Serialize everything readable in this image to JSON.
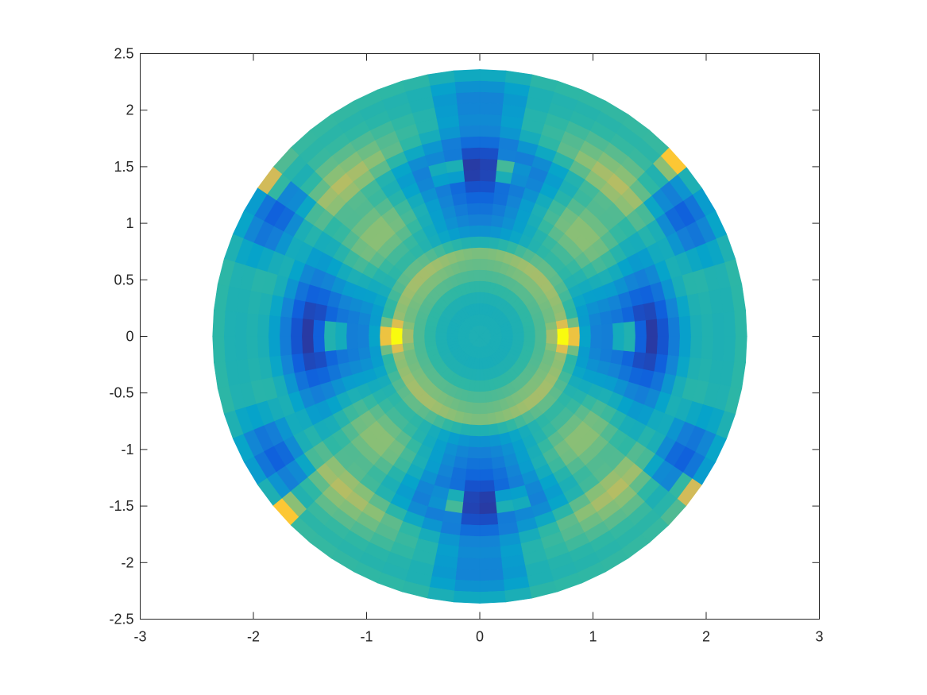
{
  "chart_data": {
    "type": "heatmap",
    "plot_kind": "polar pseudocolor surface on a disk",
    "title": "",
    "xlabel": "",
    "ylabel": "",
    "xlim": [
      -3,
      3
    ],
    "ylim": [
      -2.5,
      2.5
    ],
    "x_ticks": [
      -3,
      -2,
      -1,
      0,
      1,
      2,
      3
    ],
    "y_ticks": [
      2.5,
      2,
      1.5,
      1,
      0.5,
      0,
      -0.5,
      -1,
      -1.5,
      -2,
      -2.5
    ],
    "x_tick_labels": [
      "-3",
      "-2",
      "-1",
      "0",
      "1",
      "2",
      "3"
    ],
    "y_tick_labels": [
      "2.5",
      "2",
      "1.5",
      "1",
      "0.5",
      "0",
      "-0.5",
      "-1",
      "-1.5",
      "-2",
      "-2.5"
    ],
    "disk_radius": 2.36,
    "radial_cells": 24,
    "angular_cells": 64,
    "grid": false,
    "legend": "none",
    "colormap": "parula",
    "colormap_stops": [
      "#352a87",
      "#0f5cdd",
      "#1481d6",
      "#06a4ca",
      "#2eb7a4",
      "#87bf77",
      "#d1bb59",
      "#fec832",
      "#f9fb0e"
    ],
    "features": {
      "dark_lobes_angles_deg": [
        0,
        90,
        180,
        270
      ],
      "dark_lobe_radius_inner": 1.0,
      "outer_dark_cells_angles_deg": [
        16,
        34,
        146,
        164,
        196,
        214,
        326,
        344,
        70,
        110,
        250,
        290
      ],
      "hotspots": [
        {
          "x": -1.3,
          "y": 0.0
        },
        {
          "x": -0.78,
          "y": 0.0
        },
        {
          "x": 0.78,
          "y": 0.0
        },
        {
          "x": 1.3,
          "y": 0.0
        },
        {
          "x": -0.28,
          "y": 1.47
        },
        {
          "x": 0.25,
          "y": 1.47
        },
        {
          "x": -0.25,
          "y": -1.47
        },
        {
          "x": 0.28,
          "y": -1.47
        },
        {
          "x": -1.8,
          "y": 1.42
        },
        {
          "x": 1.75,
          "y": 1.5
        },
        {
          "x": -1.75,
          "y": -1.5
        },
        {
          "x": 1.8,
          "y": -1.42
        }
      ]
    }
  }
}
